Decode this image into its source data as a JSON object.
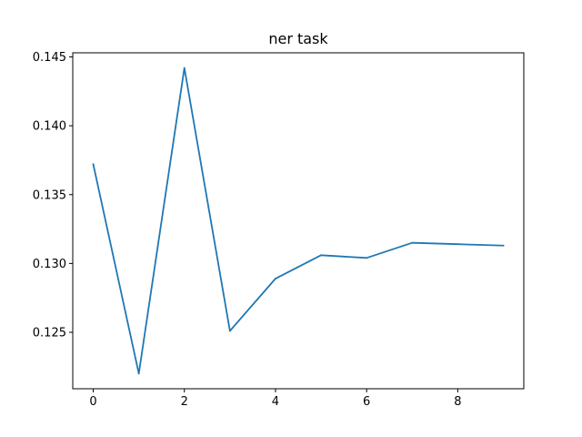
{
  "chart_data": {
    "type": "line",
    "title": "ner task",
    "xlabel": "",
    "ylabel": "",
    "x": [
      0,
      1,
      2,
      3,
      4,
      5,
      6,
      7,
      8,
      9
    ],
    "series": [
      {
        "values": [
          0.1372,
          0.122,
          0.1442,
          0.1251,
          0.1289,
          0.1306,
          0.1304,
          0.1315,
          0.1314,
          0.1313
        ],
        "color": "#1f77b4"
      }
    ],
    "xlim": [
      -0.45,
      9.45
    ],
    "ylim": [
      0.1209,
      0.1453
    ],
    "xticks": [
      0,
      2,
      4,
      6,
      8
    ],
    "xtick_labels": [
      "0",
      "2",
      "4",
      "6",
      "8"
    ],
    "yticks": [
      0.125,
      0.13,
      0.135,
      0.14,
      0.145
    ],
    "ytick_labels": [
      "0.125",
      "0.130",
      "0.135",
      "0.140",
      "0.145"
    ],
    "grid": false,
    "legend": "none"
  }
}
